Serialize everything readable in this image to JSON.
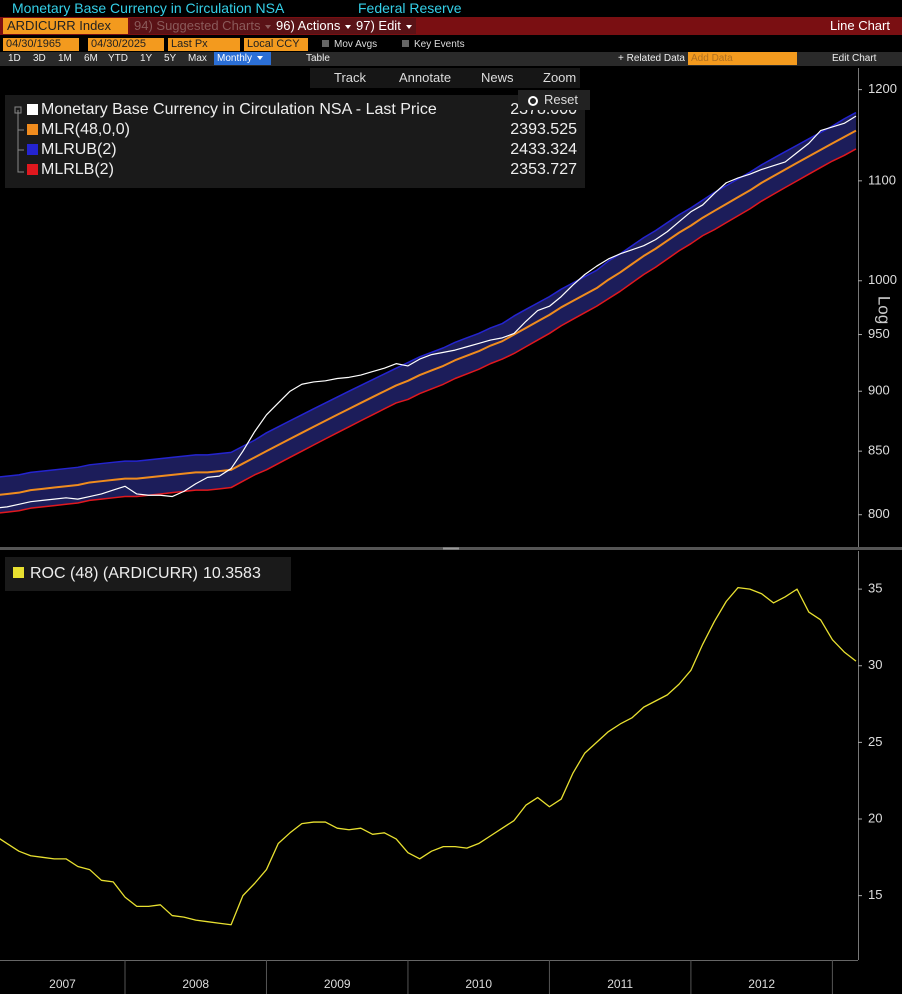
{
  "header": {
    "title": "Monetary Base Currency in Circulation NSA",
    "source": "Federal Reserve"
  },
  "toolbar": {
    "ticker": "ARDICURR Index",
    "suggested": "94) Suggested Charts",
    "actions": "96) Actions",
    "edit": "97) Edit",
    "chart_kind": "Line Chart",
    "start_date": "04/30/1965",
    "end_date": "04/30/2025",
    "field": "Last Px",
    "currency": "Local CCY",
    "mov_avgs": "Mov Avgs",
    "key_events": "Key Events",
    "periods": [
      "1D",
      "3D",
      "1M",
      "6M",
      "YTD",
      "1Y",
      "5Y",
      "Max"
    ],
    "frequency": "Monthly",
    "table": "Table",
    "related": "Related Data",
    "add_data": "Add Data",
    "edit_chart": "Edit Chart",
    "tools": [
      "Track",
      "Annotate",
      "News",
      "Zoom"
    ],
    "reset": "Reset"
  },
  "chart_data": [
    {
      "type": "line",
      "log_scale": true,
      "y_label": "Log",
      "ylim": [
        775,
        1225
      ],
      "yticks": [
        800,
        850,
        900,
        950,
        1000,
        1100,
        1200
      ],
      "grid": false,
      "band_color": "#1c1d5a",
      "series": [
        {
          "name": "Monetary Base Currency in Circulation NSA - Last Price",
          "color": "#ffffff",
          "legend_label": "2378.000",
          "values": [
            805,
            806,
            808,
            810,
            811,
            812,
            813,
            812,
            814,
            816,
            819,
            822,
            816,
            815,
            815,
            814,
            818,
            824,
            829,
            830,
            836,
            850,
            866,
            880,
            890,
            900,
            906,
            908,
            909,
            911,
            912,
            914,
            917,
            920,
            924,
            922,
            928,
            932,
            934,
            936,
            939,
            942,
            945,
            947,
            951,
            962,
            972,
            976,
            985,
            996,
            1006,
            1014,
            1021,
            1026,
            1030,
            1034,
            1040,
            1048,
            1058,
            1068,
            1075,
            1087,
            1098,
            1103,
            1107,
            1112,
            1116,
            1120,
            1130,
            1140,
            1154,
            1158,
            1162,
            1170
          ]
        },
        {
          "name": "MLR(48,0,0)",
          "color": "#f08c1e",
          "legend_label": "2393.525",
          "values": [
            815,
            816,
            817,
            819,
            820,
            821,
            822,
            823,
            825,
            826,
            827,
            828,
            828,
            829,
            830,
            831,
            832,
            833,
            833,
            834,
            835,
            840,
            845,
            850,
            855,
            860,
            865,
            870,
            875,
            880,
            885,
            890,
            895,
            900,
            905,
            909,
            914,
            918,
            922,
            927,
            931,
            935,
            940,
            944,
            950,
            956,
            962,
            968,
            975,
            981,
            987,
            993,
            1001,
            1008,
            1016,
            1024,
            1031,
            1039,
            1047,
            1054,
            1062,
            1069,
            1076,
            1083,
            1090,
            1098,
            1105,
            1112,
            1119,
            1126,
            1133,
            1140,
            1147,
            1154
          ]
        },
        {
          "name": "MLRUB(2)",
          "color": "#2424d0",
          "legend_label": "2433.324",
          "values": [
            829,
            830,
            831,
            833,
            834,
            835,
            836,
            837,
            839,
            840,
            841,
            842,
            842,
            843,
            844,
            845,
            846,
            847,
            847,
            848,
            849,
            854,
            859,
            865,
            870,
            875,
            880,
            885,
            890,
            895,
            900,
            905,
            910,
            915,
            920,
            925,
            930,
            934,
            938,
            943,
            947,
            951,
            956,
            960,
            967,
            973,
            979,
            985,
            992,
            998,
            1004,
            1010,
            1019,
            1026,
            1034,
            1042,
            1049,
            1057,
            1065,
            1072,
            1080,
            1088,
            1095,
            1102,
            1109,
            1117,
            1124,
            1131,
            1138,
            1145,
            1152,
            1159,
            1167,
            1174
          ]
        },
        {
          "name": "MLRLB(2)",
          "color": "#e0181e",
          "legend_label": "2353.727",
          "values": [
            801,
            802,
            803,
            805,
            806,
            807,
            808,
            809,
            811,
            812,
            813,
            814,
            814,
            815,
            816,
            817,
            818,
            819,
            819,
            820,
            821,
            826,
            831,
            835,
            840,
            845,
            850,
            855,
            860,
            865,
            870,
            875,
            880,
            885,
            890,
            893,
            898,
            902,
            906,
            911,
            915,
            919,
            924,
            928,
            933,
            939,
            945,
            951,
            958,
            964,
            970,
            976,
            983,
            990,
            998,
            1006,
            1013,
            1021,
            1029,
            1036,
            1044,
            1050,
            1057,
            1064,
            1071,
            1079,
            1086,
            1093,
            1100,
            1107,
            1114,
            1121,
            1127,
            1134
          ]
        }
      ]
    },
    {
      "type": "line",
      "categories": [
        null,
        null,
        null,
        null,
        null,
        "2007",
        null,
        null,
        null,
        null,
        null,
        null,
        null,
        null,
        null,
        null,
        null,
        "2008",
        null,
        null,
        null,
        null,
        null,
        null,
        null,
        null,
        null,
        null,
        null,
        "2009",
        null,
        null,
        null,
        null,
        null,
        null,
        null,
        null,
        null,
        null,
        null,
        "2010",
        null,
        null,
        null,
        null,
        null,
        null,
        null,
        null,
        null,
        null,
        null,
        "2011",
        null,
        null,
        null,
        null,
        null,
        null,
        null,
        null,
        null,
        null,
        null,
        "2012",
        null,
        null,
        null,
        null,
        null,
        null,
        null,
        null
      ],
      "ylim": [
        10.8,
        36.9
      ],
      "yticks": [
        15,
        20,
        25,
        30,
        35
      ],
      "grid": false,
      "series": [
        {
          "name": "ROC (48) (ARDICURR)",
          "color": "#e8e030",
          "legend_label": "10.3583",
          "values": [
            18.9,
            18.4,
            17.9,
            17.6,
            17.5,
            17.4,
            17.4,
            16.9,
            16.7,
            16.0,
            15.9,
            14.9,
            14.3,
            14.3,
            14.4,
            13.7,
            13.6,
            13.4,
            13.3,
            13.2,
            13.1,
            15.0,
            15.8,
            16.7,
            18.4,
            19.1,
            19.7,
            19.8,
            19.8,
            19.4,
            19.3,
            19.4,
            19.0,
            19.1,
            18.7,
            17.8,
            17.4,
            17.9,
            18.2,
            18.2,
            18.1,
            18.4,
            18.9,
            19.4,
            19.9,
            20.9,
            21.4,
            20.8,
            21.3,
            23.0,
            24.3,
            25.0,
            25.7,
            26.2,
            26.6,
            27.3,
            27.7,
            28.1,
            28.8,
            29.7,
            31.4,
            32.9,
            34.2,
            35.1,
            35.0,
            34.7,
            34.1,
            34.5,
            35.0,
            33.5,
            33.0,
            31.7,
            30.9,
            30.3
          ]
        }
      ]
    }
  ]
}
